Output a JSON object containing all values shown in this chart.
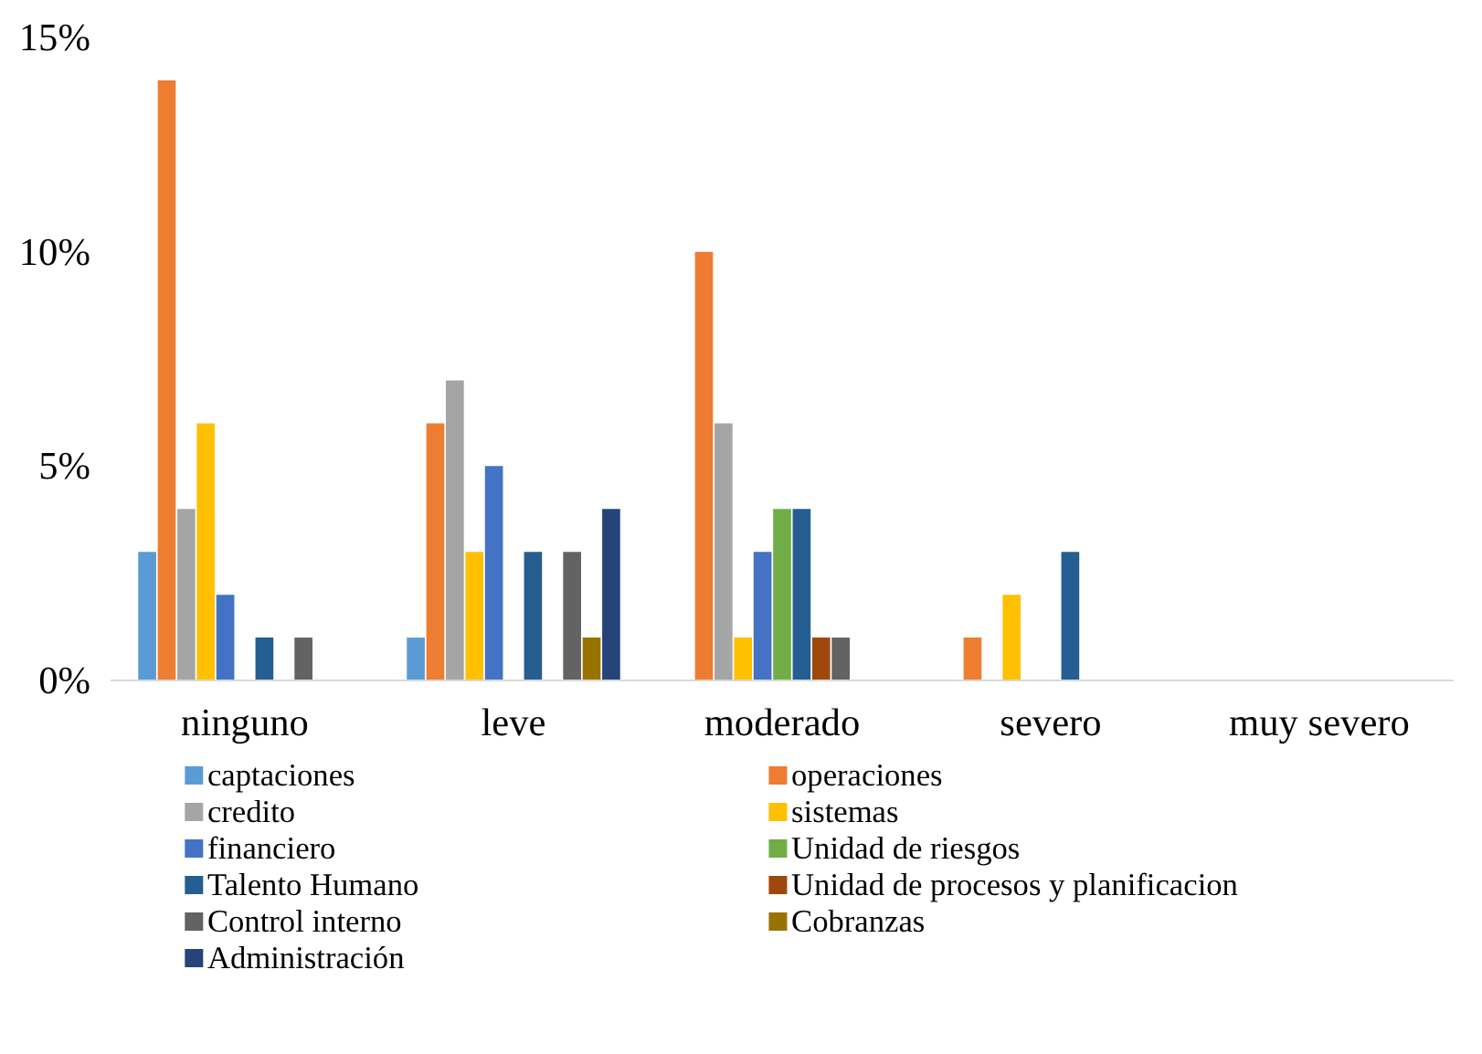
{
  "chart_data": {
    "type": "bar",
    "categories": [
      "ninguno",
      "leve",
      "moderado",
      "severo",
      "muy severo"
    ],
    "ylim": [
      0,
      15
    ],
    "yticks": [
      {
        "value": 0,
        "label": "0%"
      },
      {
        "value": 5,
        "label": "5%"
      },
      {
        "value": 10,
        "label": "10%"
      },
      {
        "value": 15,
        "label": "15%"
      }
    ],
    "grid": false,
    "legend": "bottom",
    "series": [
      {
        "name": "captaciones",
        "color": "#5b9bd5",
        "values": [
          3,
          1,
          0,
          0,
          0
        ]
      },
      {
        "name": "operaciones",
        "color": "#ed7d31",
        "values": [
          14,
          6,
          10,
          1,
          0
        ]
      },
      {
        "name": "credito",
        "color": "#a5a5a5",
        "values": [
          4,
          7,
          6,
          0,
          0
        ]
      },
      {
        "name": "sistemas",
        "color": "#ffc000",
        "values": [
          6,
          3,
          1,
          2,
          0
        ]
      },
      {
        "name": "financiero",
        "color": "#4472c4",
        "values": [
          2,
          5,
          3,
          0,
          0
        ]
      },
      {
        "name": "Unidad de riesgos",
        "color": "#70ad47",
        "values": [
          0,
          0,
          4,
          0,
          0
        ]
      },
      {
        "name": "Talento Humano",
        "color": "#255e91",
        "values": [
          1,
          3,
          4,
          3,
          0
        ]
      },
      {
        "name": "Unidad de procesos y planificacion",
        "color": "#9e480e",
        "values": [
          0,
          0,
          1,
          0,
          0
        ]
      },
      {
        "name": "Control interno",
        "color": "#636363",
        "values": [
          1,
          3,
          1,
          0,
          0
        ]
      },
      {
        "name": "Cobranzas",
        "color": "#997300",
        "values": [
          0,
          1,
          0,
          0,
          0
        ]
      },
      {
        "name": "Administración",
        "color": "#264478",
        "values": [
          0,
          4,
          0,
          0,
          0
        ]
      }
    ]
  }
}
